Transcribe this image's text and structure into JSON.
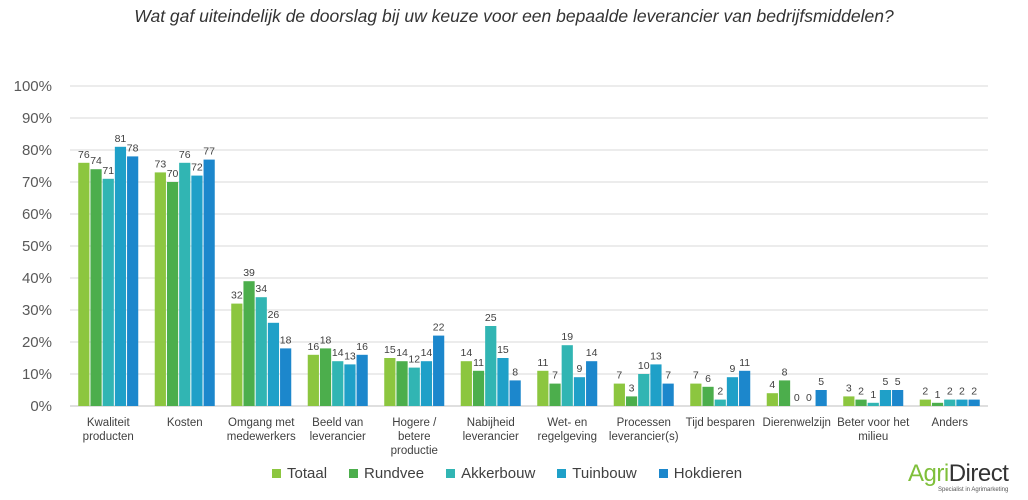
{
  "chart_data": {
    "type": "bar",
    "title": "Wat gaf uiteindelijk de doorslag bij uw keuze voor een bepaalde leverancier van bedrijfsmiddelen?",
    "categories": [
      [
        "Kwaliteit",
        "producten"
      ],
      [
        "Kosten"
      ],
      [
        "Omgang met",
        "medewerkers"
      ],
      [
        "Beeld van",
        "leverancier"
      ],
      [
        "Hogere /",
        "betere",
        "productie"
      ],
      [
        "Nabijheid",
        "leverancier"
      ],
      [
        "Wet- en",
        "regelgeving"
      ],
      [
        "Processen",
        "leverancier(s)"
      ],
      [
        "Tijd besparen"
      ],
      [
        "Dierenwelzijn"
      ],
      [
        "Beter voor het",
        "milieu"
      ],
      [
        "Anders"
      ]
    ],
    "series": [
      {
        "name": "Totaal",
        "color": "#8cc63f",
        "values": [
          76,
          73,
          32,
          16,
          15,
          14,
          11,
          7,
          7,
          4,
          3,
          2
        ]
      },
      {
        "name": "Rundvee",
        "color": "#4cae4c",
        "values": [
          74,
          70,
          39,
          18,
          14,
          11,
          7,
          3,
          6,
          8,
          2,
          1
        ]
      },
      {
        "name": "Akkerbouw",
        "color": "#31b5b3",
        "values": [
          71,
          76,
          34,
          14,
          12,
          25,
          19,
          10,
          2,
          0,
          1,
          2
        ]
      },
      {
        "name": "Tuinbouw",
        "color": "#1fa0c8",
        "values": [
          81,
          72,
          26,
          13,
          14,
          15,
          9,
          13,
          9,
          0,
          5,
          2
        ]
      },
      {
        "name": "Hokdieren",
        "color": "#1c87cc",
        "values": [
          78,
          77,
          18,
          16,
          22,
          8,
          14,
          7,
          11,
          5,
          5,
          2
        ]
      }
    ],
    "yticks": [
      "0%",
      "10%",
      "20%",
      "30%",
      "40%",
      "50%",
      "60%",
      "70%",
      "80%",
      "90%",
      "100%"
    ],
    "ylim": [
      0,
      100
    ],
    "grid": true,
    "legend": "bottom"
  },
  "logo": {
    "agri": "Agri",
    "direct": "Direct",
    "tagline": "Specialist in Agrimarketing"
  }
}
